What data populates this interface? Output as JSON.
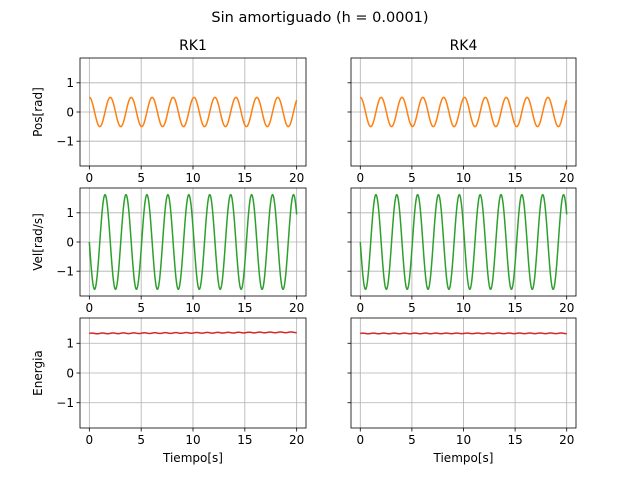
{
  "figure": {
    "suptitle": "Sin amortiguado (h = 0.0001)",
    "columns": [
      "RK1",
      "RK4"
    ],
    "row_labels": [
      "Pos[rad]",
      "Vel[rad/s]",
      "Energia"
    ],
    "xlabel": "Tiempo[s]",
    "x_ticks": [
      "0",
      "5",
      "10",
      "15",
      "20"
    ],
    "y_ticks": [
      "−1",
      "0",
      "1"
    ]
  },
  "chart_data": [
    {
      "type": "line",
      "title": "RK1",
      "ylabel": "Pos[rad]",
      "xlabel": "",
      "xlim": [
        -0.9,
        20.9
      ],
      "ylim": [
        -1.85,
        1.85
      ],
      "grid": true,
      "color": "#ff7f0e",
      "series": [
        {
          "kind": "cosine",
          "amplitude": 0.5,
          "period": 2.02,
          "offset": 0,
          "x": [
            0,
            20
          ]
        }
      ]
    },
    {
      "type": "line",
      "title": "RK4",
      "ylabel": "",
      "xlabel": "",
      "xlim": [
        -0.9,
        20.9
      ],
      "ylim": [
        -1.85,
        1.85
      ],
      "grid": true,
      "color": "#ff7f0e",
      "series": [
        {
          "kind": "cosine",
          "amplitude": 0.5,
          "period": 2.02,
          "offset": 0,
          "x": [
            0,
            20
          ]
        }
      ]
    },
    {
      "type": "line",
      "title": "",
      "ylabel": "Vel[rad/s]",
      "xlabel": "",
      "xlim": [
        -0.9,
        20.9
      ],
      "ylim": [
        -1.85,
        1.85
      ],
      "grid": true,
      "color": "#2ca02c",
      "series": [
        {
          "kind": "neg_sine",
          "amplitude": 1.62,
          "period": 2.02,
          "offset": 0,
          "x": [
            0,
            20
          ]
        }
      ]
    },
    {
      "type": "line",
      "title": "",
      "ylabel": "",
      "xlabel": "",
      "xlim": [
        -0.9,
        20.9
      ],
      "ylim": [
        -1.85,
        1.85
      ],
      "grid": true,
      "color": "#2ca02c",
      "series": [
        {
          "kind": "neg_sine",
          "amplitude": 1.62,
          "period": 2.02,
          "offset": 0,
          "x": [
            0,
            20
          ]
        }
      ]
    },
    {
      "type": "line",
      "title": "",
      "ylabel": "Energia",
      "xlabel": "Tiempo[s]",
      "xlim": [
        -0.9,
        20.9
      ],
      "ylim": [
        -1.85,
        1.85
      ],
      "grid": true,
      "color": "#d62728",
      "series": [
        {
          "kind": "energy",
          "start": 1.33,
          "end": 1.37,
          "ripple": 0.012,
          "period": 1.01,
          "x": [
            0,
            20
          ]
        }
      ]
    },
    {
      "type": "line",
      "title": "",
      "ylabel": "",
      "xlabel": "Tiempo[s]",
      "xlim": [
        -0.9,
        20.9
      ],
      "ylim": [
        -1.85,
        1.85
      ],
      "grid": true,
      "color": "#d62728",
      "series": [
        {
          "kind": "energy",
          "start": 1.33,
          "end": 1.335,
          "ripple": 0.01,
          "period": 1.01,
          "x": [
            0,
            20
          ]
        }
      ]
    }
  ]
}
